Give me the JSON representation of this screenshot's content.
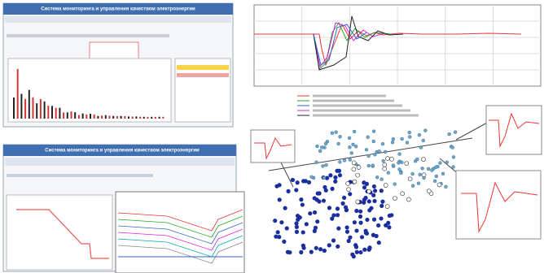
{
  "top_screenshot": {
    "title": "Система мониторинга и управления качеством электроэнергии"
  },
  "bottom_screenshot": {
    "title": "Система мониторинга и управления качеством электроэнергии"
  }
}
